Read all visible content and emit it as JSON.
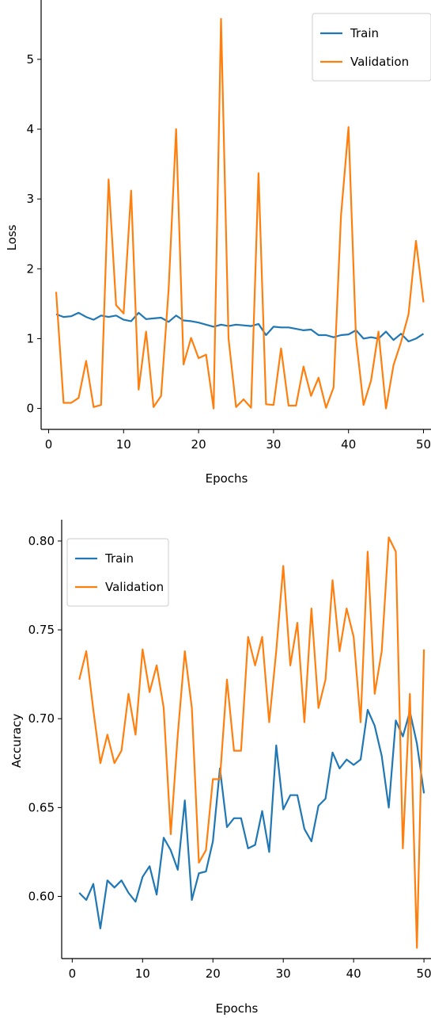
{
  "chart_data": [
    {
      "type": "line",
      "xlabel": "Epochs",
      "ylabel": "Loss",
      "xlim": [
        -1,
        51
      ],
      "ylim": [
        -0.3,
        5.85
      ],
      "xticks": [
        0,
        10,
        20,
        30,
        40,
        50
      ],
      "yticks": [
        0,
        1,
        2,
        3,
        4,
        5
      ],
      "legend_position": "top-right",
      "grid": false,
      "x": [
        1,
        2,
        3,
        4,
        5,
        6,
        7,
        8,
        9,
        10,
        11,
        12,
        13,
        14,
        15,
        16,
        17,
        18,
        19,
        20,
        21,
        22,
        23,
        24,
        25,
        26,
        27,
        28,
        29,
        30,
        31,
        32,
        33,
        34,
        35,
        36,
        37,
        38,
        39,
        40,
        41,
        42,
        43,
        44,
        45,
        46,
        47,
        48,
        49,
        50
      ],
      "series": [
        {
          "name": "Train",
          "color": "#1f77b4",
          "values": [
            1.35,
            1.31,
            1.32,
            1.37,
            1.31,
            1.27,
            1.33,
            1.31,
            1.33,
            1.27,
            1.25,
            1.37,
            1.28,
            1.29,
            1.3,
            1.24,
            1.33,
            1.26,
            1.25,
            1.23,
            1.2,
            1.17,
            1.2,
            1.18,
            1.2,
            1.19,
            1.18,
            1.21,
            1.05,
            1.17,
            1.16,
            1.16,
            1.14,
            1.12,
            1.13,
            1.05,
            1.05,
            1.02,
            1.05,
            1.06,
            1.12,
            1.0,
            1.02,
            1.0,
            1.1,
            0.98,
            1.07,
            0.96,
            1.0,
            1.07
          ]
        },
        {
          "name": "Validation",
          "color": "#ff7f0e",
          "values": [
            1.67,
            0.08,
            0.08,
            0.15,
            0.68,
            0.02,
            0.05,
            3.28,
            1.48,
            1.36,
            3.12,
            0.27,
            1.1,
            0.02,
            0.18,
            1.7,
            4.0,
            0.63,
            1.01,
            0.72,
            0.77,
            0.0,
            5.58,
            1.0,
            0.02,
            0.13,
            0.01,
            3.37,
            0.06,
            0.05,
            0.86,
            0.04,
            0.04,
            0.6,
            0.18,
            0.44,
            0.01,
            0.3,
            2.76,
            4.03,
            1.0,
            0.05,
            0.4,
            1.1,
            0.0,
            0.62,
            0.95,
            1.35,
            2.4,
            1.52
          ]
        }
      ]
    },
    {
      "type": "line",
      "xlabel": "Epochs",
      "ylabel": "Accuracy",
      "xlim": [
        -1.5,
        51
      ],
      "ylim": [
        0.565,
        0.812
      ],
      "xticks": [
        0,
        10,
        20,
        30,
        40,
        50
      ],
      "yticks": [
        0.6,
        0.65,
        0.7,
        0.75,
        0.8
      ],
      "ytick_labels": [
        "0.60",
        "0.65",
        "0.70",
        "0.75",
        "0.80"
      ],
      "legend_position": "top-left",
      "grid": false,
      "x": [
        1,
        2,
        3,
        4,
        5,
        6,
        7,
        8,
        9,
        10,
        11,
        12,
        13,
        14,
        15,
        16,
        17,
        18,
        19,
        20,
        21,
        22,
        23,
        24,
        25,
        26,
        27,
        28,
        29,
        30,
        31,
        32,
        33,
        34,
        35,
        36,
        37,
        38,
        39,
        40,
        41,
        42,
        43,
        44,
        45,
        46,
        47,
        48,
        49,
        50
      ],
      "series": [
        {
          "name": "Train",
          "color": "#1f77b4",
          "values": [
            0.602,
            0.598,
            0.607,
            0.582,
            0.609,
            0.605,
            0.609,
            0.602,
            0.597,
            0.611,
            0.617,
            0.601,
            0.633,
            0.626,
            0.615,
            0.654,
            0.598,
            0.613,
            0.614,
            0.631,
            0.672,
            0.639,
            0.644,
            0.644,
            0.627,
            0.629,
            0.648,
            0.625,
            0.685,
            0.649,
            0.657,
            0.657,
            0.638,
            0.631,
            0.651,
            0.655,
            0.681,
            0.672,
            0.677,
            0.674,
            0.677,
            0.705,
            0.696,
            0.679,
            0.65,
            0.699,
            0.69,
            0.704,
            0.686,
            0.658
          ]
        },
        {
          "name": "Validation",
          "color": "#ff7f0e",
          "values": [
            0.722,
            0.738,
            0.705,
            0.675,
            0.691,
            0.675,
            0.682,
            0.714,
            0.691,
            0.739,
            0.715,
            0.73,
            0.706,
            0.635,
            0.691,
            0.738,
            0.706,
            0.619,
            0.626,
            0.666,
            0.666,
            0.722,
            0.682,
            0.682,
            0.746,
            0.73,
            0.746,
            0.698,
            0.738,
            0.786,
            0.73,
            0.754,
            0.698,
            0.762,
            0.706,
            0.722,
            0.778,
            0.738,
            0.762,
            0.746,
            0.698,
            0.794,
            0.714,
            0.738,
            0.802,
            0.794,
            0.627,
            0.714,
            0.571,
            0.739
          ]
        }
      ]
    }
  ]
}
